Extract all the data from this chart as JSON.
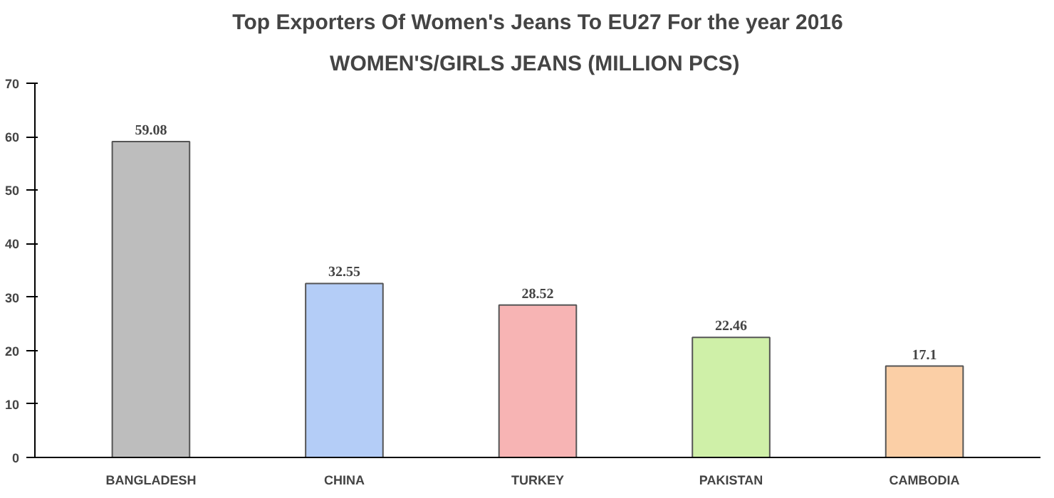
{
  "chart_data": {
    "type": "bar",
    "title": "Top Exporters Of Women's Jeans To EU27 For the year 2016",
    "subtitle": "WOMEN'S/GIRLS  JEANS (MILLION PCS)",
    "categories": [
      "BANGLADESH",
      "CHINA",
      "TURKEY",
      "PAKISTAN",
      "CAMBODIA"
    ],
    "values": [
      59.08,
      32.55,
      28.52,
      22.46,
      17.1
    ],
    "colors": [
      "#bdbdbd",
      "#b4cdf7",
      "#f7b4b4",
      "#cff0a8",
      "#fbcfa6"
    ],
    "value_labels": [
      "59.08",
      "32.55",
      "28.52",
      "22.46",
      "17.1"
    ],
    "ylim": [
      0,
      70
    ],
    "yticks": [
      0,
      10,
      20,
      30,
      40,
      50,
      60,
      70
    ],
    "grid": false
  }
}
